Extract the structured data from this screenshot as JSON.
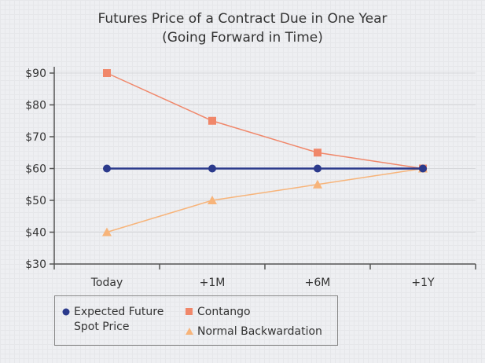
{
  "chart_data": {
    "type": "line",
    "title": "Futures Price of a Contract Due in One Year",
    "subtitle": "(Going Forward in Time)",
    "categories": [
      "Today",
      "+1M",
      "+6M",
      "+1Y"
    ],
    "ylim": [
      30,
      90
    ],
    "yticks": [
      "$30",
      "$40",
      "$50",
      "$60",
      "$70",
      "$80",
      "$90"
    ],
    "yticks_values": [
      30,
      40,
      50,
      60,
      70,
      80,
      90
    ],
    "grid": true,
    "legend": "bottom-left",
    "series": [
      {
        "name": "Expected Future Spot Price",
        "values": [
          60,
          60,
          60,
          60
        ],
        "color": "#2b3a8c",
        "marker": "circle"
      },
      {
        "name": "Contango",
        "values": [
          90,
          75,
          65,
          60
        ],
        "color": "#f0876a",
        "marker": "square"
      },
      {
        "name": "Normal Backwardation",
        "values": [
          40,
          50,
          55,
          60
        ],
        "color": "#f7b47a",
        "marker": "triangle"
      }
    ]
  },
  "legend": {
    "spot_line1": "Expected Future",
    "spot_line2": "Spot Price",
    "contango": "Contango",
    "backwardation": "Normal Backwardation"
  }
}
